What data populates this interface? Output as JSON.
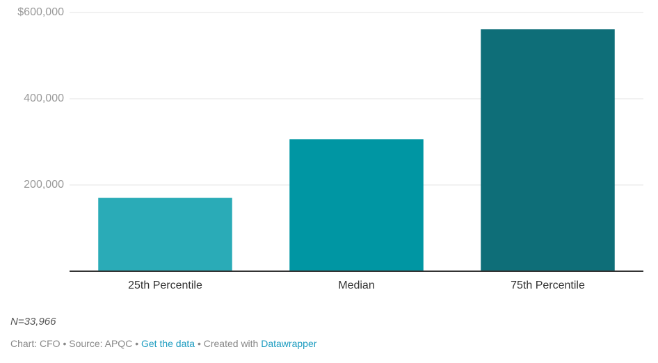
{
  "chart_data": {
    "type": "bar",
    "categories": [
      "25th Percentile",
      "Median",
      "75th Percentile"
    ],
    "values": [
      170000,
      306000,
      561000
    ],
    "colors": [
      "#2aabb7",
      "#0096a3",
      "#0e6e78"
    ],
    "ylim": [
      0,
      600000
    ],
    "yticks": [
      {
        "value": 200000,
        "label": "200,000"
      },
      {
        "value": 400000,
        "label": "400,000"
      },
      {
        "value": 600000,
        "label": "$600,000"
      }
    ],
    "grid": true
  },
  "notes": "N=33,966",
  "footer": {
    "chart": "Chart: CFO",
    "separator": "•",
    "source": "Source: APQC",
    "get_data": "Get the data",
    "created": "Created with",
    "tool": "Datawrapper"
  }
}
